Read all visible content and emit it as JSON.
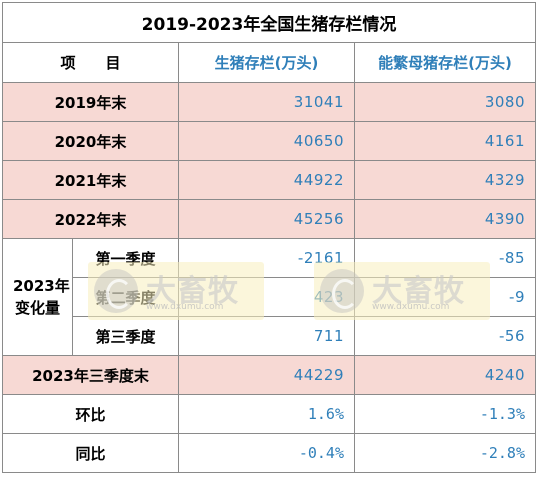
{
  "title": "2019-2023年全国生猪存栏情况",
  "headers": {
    "item": "项　　目",
    "hog": "生猪存栏(万头)",
    "sow": "能繁母猪存栏(万头)"
  },
  "rows": [
    {
      "label": "2019年末",
      "hog": "31041",
      "sow": "3080"
    },
    {
      "label": "2020年末",
      "hog": "40650",
      "sow": "4161"
    },
    {
      "label": "2021年末",
      "hog": "44922",
      "sow": "4329"
    },
    {
      "label": "2022年末",
      "hog": "45256",
      "sow": "4390"
    }
  ],
  "change_group": {
    "label_line1": "2023年",
    "label_line2": "变化量",
    "rows": [
      {
        "label": "第一季度",
        "hog": "-2161",
        "sow": "-85"
      },
      {
        "label": "第二季度",
        "hog": "423",
        "sow": "-9"
      },
      {
        "label": "第三季度",
        "hog": "711",
        "sow": "-56"
      }
    ]
  },
  "q3_end": {
    "label": "2023年三季度末",
    "hog": "44229",
    "sow": "4240"
  },
  "qoq": {
    "label": "环比",
    "hog": "1.6%",
    "sow": "-1.3%"
  },
  "yoy": {
    "label": "同比",
    "hog": "-0.4%",
    "sow": "-2.8%"
  },
  "watermark": {
    "brand": "大畜牧",
    "site": "www.dxumu.com",
    "logo_icon": "dxumu-logo-icon"
  },
  "colors": {
    "highlight_row": "#f7d9d4",
    "header_blue": "#2f7fb9",
    "value_blue": "#2f7fb9"
  }
}
